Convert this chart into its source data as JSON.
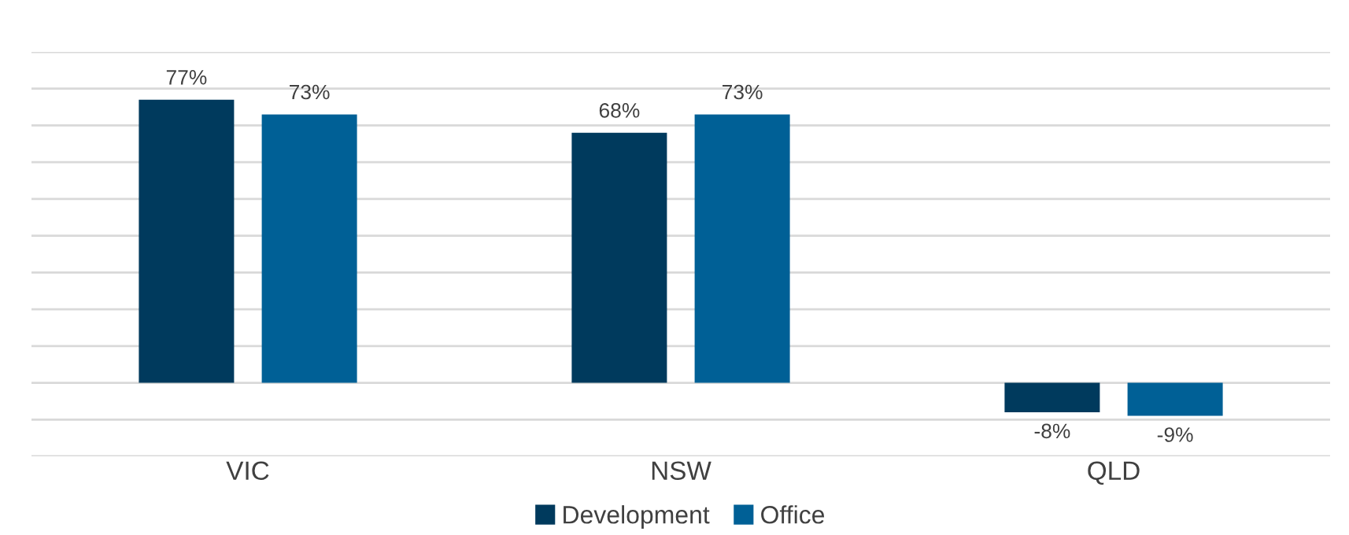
{
  "chart_data": {
    "type": "bar",
    "categories": [
      "VIC",
      "NSW",
      "QLD"
    ],
    "series": [
      {
        "name": "Development",
        "color": "#003a5d",
        "values": [
          77,
          68,
          -8
        ],
        "value_labels": [
          "77%",
          "68%",
          "-8%"
        ]
      },
      {
        "name": "Office",
        "color": "#006096",
        "values": [
          73,
          73,
          -9
        ],
        "value_labels": [
          "73%",
          "73%",
          "-9%"
        ]
      }
    ],
    "ylim": [
      -20,
      90
    ],
    "yticks": [
      {
        "value": -20,
        "label": null
      },
      {
        "value": -10,
        "label": null
      },
      {
        "value": 0,
        "label": null
      },
      {
        "value": 10,
        "label": null
      },
      {
        "value": 20,
        "label": null
      },
      {
        "value": 30,
        "label": null
      },
      {
        "value": 40,
        "label": null
      },
      {
        "value": 50,
        "label": null
      },
      {
        "value": 60,
        "label": null
      },
      {
        "value": 70,
        "label": null
      },
      {
        "value": 80,
        "label": null
      },
      {
        "value": 90,
        "label": null
      }
    ],
    "tick_labels": "x",
    "grid": "y",
    "legend": "bottom"
  }
}
